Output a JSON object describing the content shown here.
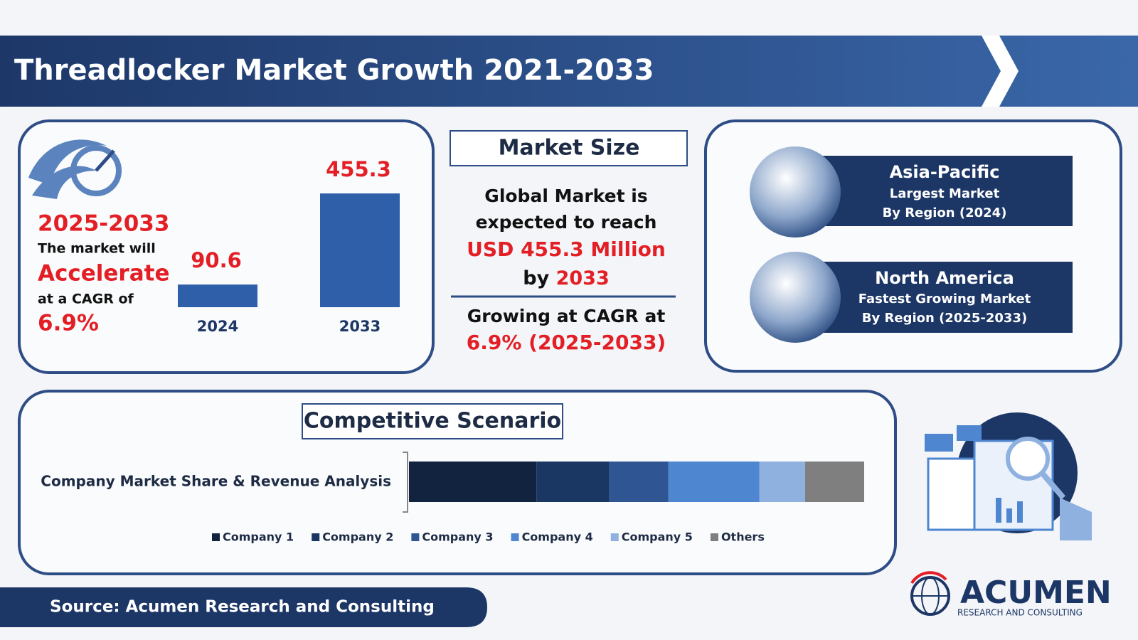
{
  "header": {
    "title": "Threadlocker Market Growth 2021-2033"
  },
  "growth": {
    "period": "2025-2033",
    "line1": "The market will",
    "highlight": "Accelerate",
    "line2": "at a CAGR of",
    "cagr": "6.9%"
  },
  "market_size": {
    "title": "Market Size",
    "line1": "Global Market is",
    "line2": "expected to reach",
    "amount": "USD 455.3 Million",
    "by": "by",
    "year": "2033",
    "growing": "Growing at CAGR at",
    "cagr": "6.9% (2025-2033)"
  },
  "regions": [
    {
      "name": "Asia-Pacific",
      "label": "Largest Market",
      "period": "By Region (2024)"
    },
    {
      "name": "North America",
      "label": "Fastest Growing Market",
      "period": "By Region (2025-2033)"
    }
  ],
  "competitive": {
    "title": "Competitive Scenario"
  },
  "chart_data": [
    {
      "type": "bar",
      "categories": [
        "2024",
        "2033"
      ],
      "values": [
        90.6,
        455.3
      ],
      "color": "#2f5fa8"
    },
    {
      "type": "stacked_bar",
      "categories": [
        "Company Market Share & Revenue Analysis"
      ],
      "series": [
        {
          "name": "Company 1",
          "color": "#12233f",
          "values": [
            28
          ]
        },
        {
          "name": "Company 2",
          "color": "#1a3763",
          "values": [
            16
          ]
        },
        {
          "name": "Company 3",
          "color": "#2f5693",
          "values": [
            13
          ]
        },
        {
          "name": "Company 4",
          "color": "#4f86d0",
          "values": [
            20
          ]
        },
        {
          "name": "Company 5",
          "color": "#8fb1e0",
          "values": [
            10
          ]
        },
        {
          "name": "Others",
          "color": "#7f7f7f",
          "values": [
            13
          ]
        }
      ]
    }
  ],
  "source": "Source: Acumen Research and Consulting",
  "logo": {
    "name": "ACUMEN",
    "tagline": "RESEARCH AND CONSULTING"
  }
}
